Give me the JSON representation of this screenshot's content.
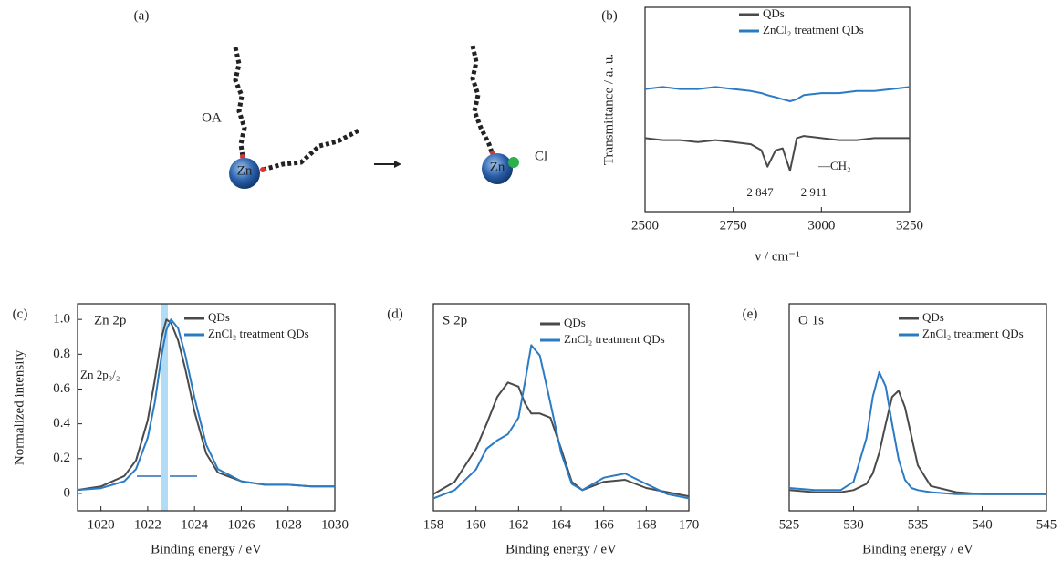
{
  "diagram": {
    "label": "(a)",
    "ligand": "OA",
    "metal_left": "Zn",
    "metal_right": "Zn",
    "halide": "Cl"
  },
  "chart_data": [
    {
      "type": "line",
      "label": "(b)",
      "x_label": "ν / cm⁻¹",
      "y_label": "Transmittance / a. u.",
      "annotations": [
        "2 847",
        "2 911",
        "—CH₂"
      ],
      "x": [
        2500,
        2550,
        2600,
        2650,
        2700,
        2750,
        2800,
        2830,
        2847,
        2870,
        2890,
        2911,
        2930,
        2950,
        3000,
        3050,
        3100,
        3150,
        3200,
        3250
      ],
      "series": [
        {
          "name": "QDs",
          "color": "#4a4a4a",
          "values": [
            0.36,
            0.35,
            0.35,
            0.34,
            0.35,
            0.34,
            0.33,
            0.3,
            0.22,
            0.3,
            0.31,
            0.2,
            0.36,
            0.37,
            0.36,
            0.35,
            0.35,
            0.36,
            0.36,
            0.36
          ]
        },
        {
          "name": "ZnCl₂ treatment QDs",
          "color": "#2a7bc4",
          "values": [
            0.6,
            0.61,
            0.6,
            0.6,
            0.61,
            0.6,
            0.59,
            0.58,
            0.57,
            0.56,
            0.55,
            0.54,
            0.55,
            0.57,
            0.58,
            0.58,
            0.59,
            0.59,
            0.6,
            0.61
          ]
        }
      ],
      "xlim": [
        2500,
        3250
      ],
      "xticks": [
        2500,
        2750,
        3000,
        3250
      ],
      "ylim": [
        0,
        1
      ]
    },
    {
      "type": "line",
      "label": "(c)",
      "panel_title": "Zn 2p",
      "x_label": "Binding energy / eV",
      "y_label": "Normalized intensity",
      "annotations": [
        "Zn 2p₃/₂"
      ],
      "x": [
        1019,
        1020,
        1021,
        1021.5,
        1022,
        1022.3,
        1022.6,
        1022.8,
        1023,
        1023.3,
        1023.6,
        1024,
        1024.5,
        1025,
        1026,
        1027,
        1028,
        1029,
        1030
      ],
      "series": [
        {
          "name": "QDs",
          "color": "#4a4a4a",
          "values": [
            0.02,
            0.04,
            0.1,
            0.19,
            0.42,
            0.65,
            0.9,
            1.0,
            0.98,
            0.88,
            0.72,
            0.47,
            0.23,
            0.12,
            0.07,
            0.05,
            0.05,
            0.04,
            0.04
          ]
        },
        {
          "name": "ZnCl₂ treatment QDs",
          "color": "#2a7bc4",
          "values": [
            0.02,
            0.03,
            0.07,
            0.14,
            0.32,
            0.52,
            0.8,
            0.94,
            1.0,
            0.95,
            0.8,
            0.55,
            0.28,
            0.14,
            0.07,
            0.05,
            0.05,
            0.04,
            0.04
          ]
        }
      ],
      "xlim": [
        1019,
        1030
      ],
      "xticks": [
        1020,
        1022,
        1024,
        1026,
        1028,
        1030
      ],
      "ylim": [
        -0.1,
        1.09
      ],
      "yticks": [
        0,
        0.2,
        0.4,
        0.6,
        0.8,
        {
          "value": 1,
          "label": "1.0"
        }
      ]
    },
    {
      "type": "line",
      "label": "(d)",
      "panel_title": "S 2p",
      "x_label": "Binding energy / eV",
      "x": [
        158,
        159,
        160,
        160.5,
        161,
        161.5,
        162,
        162.3,
        162.6,
        163,
        163.5,
        164,
        164.5,
        165,
        166,
        167,
        168,
        169,
        170
      ],
      "series": [
        {
          "name": "QDs",
          "color": "#4a4a4a",
          "values": [
            0.08,
            0.14,
            0.3,
            0.42,
            0.55,
            0.62,
            0.6,
            0.52,
            0.47,
            0.47,
            0.45,
            0.3,
            0.14,
            0.1,
            0.14,
            0.15,
            0.11,
            0.09,
            0.07
          ]
        },
        {
          "name": "ZnCl₂ treatment QDs",
          "color": "#2a7bc4",
          "values": [
            0.06,
            0.1,
            0.2,
            0.3,
            0.34,
            0.37,
            0.45,
            0.62,
            0.8,
            0.75,
            0.52,
            0.28,
            0.13,
            0.1,
            0.16,
            0.18,
            0.13,
            0.08,
            0.06
          ]
        }
      ],
      "xlim": [
        158,
        170
      ],
      "xticks": [
        158,
        160,
        162,
        164,
        166,
        168,
        170
      ],
      "ylim": [
        0,
        1
      ]
    },
    {
      "type": "line",
      "label": "(e)",
      "panel_title": "O 1s",
      "x_label": "Binding energy / eV",
      "x": [
        525,
        527,
        529,
        530,
        531,
        531.5,
        532,
        532.5,
        533,
        533.5,
        534,
        534.5,
        535,
        536,
        538,
        540,
        542,
        545
      ],
      "series": [
        {
          "name": "QDs",
          "color": "#4a4a4a",
          "values": [
            0.1,
            0.09,
            0.09,
            0.1,
            0.13,
            0.18,
            0.28,
            0.42,
            0.55,
            0.58,
            0.5,
            0.36,
            0.22,
            0.12,
            0.09,
            0.08,
            0.08,
            0.08
          ]
        },
        {
          "name": "ZnCl₂ treatment QDs",
          "color": "#2a7bc4",
          "values": [
            0.11,
            0.1,
            0.1,
            0.14,
            0.35,
            0.55,
            0.67,
            0.6,
            0.42,
            0.25,
            0.15,
            0.11,
            0.1,
            0.09,
            0.08,
            0.08,
            0.08,
            0.08
          ]
        }
      ],
      "xlim": [
        525,
        545
      ],
      "xticks": [
        525,
        530,
        535,
        540,
        545
      ],
      "ylim": [
        0,
        1
      ]
    }
  ]
}
